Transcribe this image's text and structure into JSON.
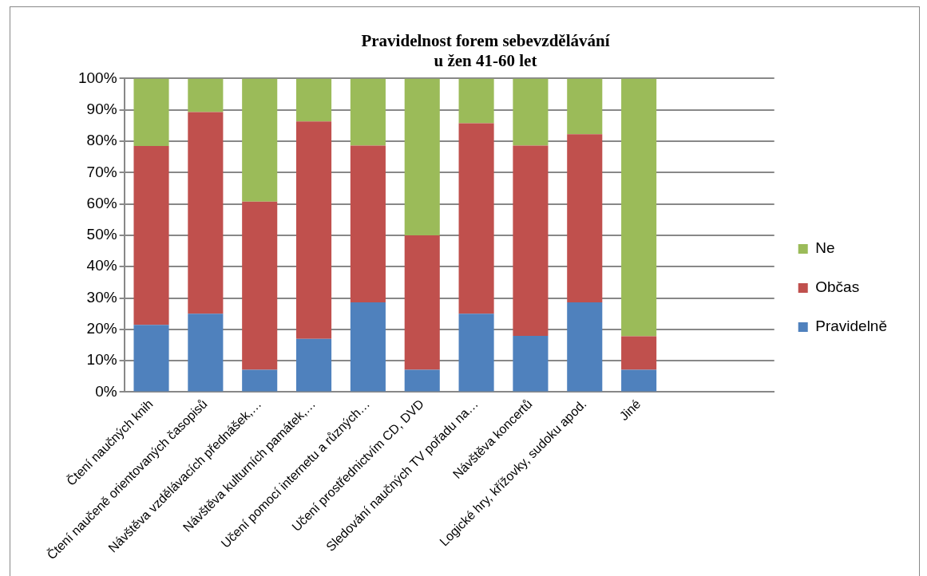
{
  "chart_data": {
    "type": "bar",
    "stacked": true,
    "title": "Pravidelnost forem sebevzdělávání\nu žen 41-60 let",
    "categories": [
      "Čtení naučných knih",
      "Čtení naučeně orientovaných časopisů",
      "Návštěva vzdělávacích přednášek,…",
      "Návštěva kulturních památek,…",
      "Učení pomocí internetu a různých…",
      "Učení prostřednictvím CD, DVD",
      "Sledování naučných TV pořadu na…",
      "Návštěva koncertů",
      "Logické hry, křížovky, sudoku apod.",
      "Jiné",
      null,
      null
    ],
    "series": [
      {
        "name": "Pravidelně",
        "color": "#4f81bd",
        "values": [
          21.4,
          25,
          7.1,
          17,
          28.6,
          7.1,
          25,
          17.9,
          28.6,
          7.1,
          null,
          null
        ]
      },
      {
        "name": "Občas",
        "color": "#c0504d",
        "values": [
          57.1,
          64.3,
          53.6,
          69.3,
          50,
          42.9,
          60.7,
          60.7,
          53.6,
          10.7,
          null,
          null
        ]
      },
      {
        "name": "Ne",
        "color": "#9bbb59",
        "values": [
          21.5,
          10.7,
          39.3,
          13.7,
          21.4,
          50,
          14.3,
          21.4,
          17.8,
          82.2,
          null,
          null
        ]
      }
    ],
    "ylim": [
      0,
      100
    ],
    "yticks": [
      {
        "value": 0,
        "label": "0%"
      },
      {
        "value": 10,
        "label": "10%"
      },
      {
        "value": 20,
        "label": "20%"
      },
      {
        "value": 30,
        "label": "30%"
      },
      {
        "value": 40,
        "label": "40%"
      },
      {
        "value": 50,
        "label": "50%"
      },
      {
        "value": 60,
        "label": "60%"
      },
      {
        "value": 70,
        "label": "70%"
      },
      {
        "value": 80,
        "label": "80%"
      },
      {
        "value": 90,
        "label": "90%"
      },
      {
        "value": 100,
        "label": "100%"
      }
    ],
    "grid": "y",
    "legend": "right"
  }
}
